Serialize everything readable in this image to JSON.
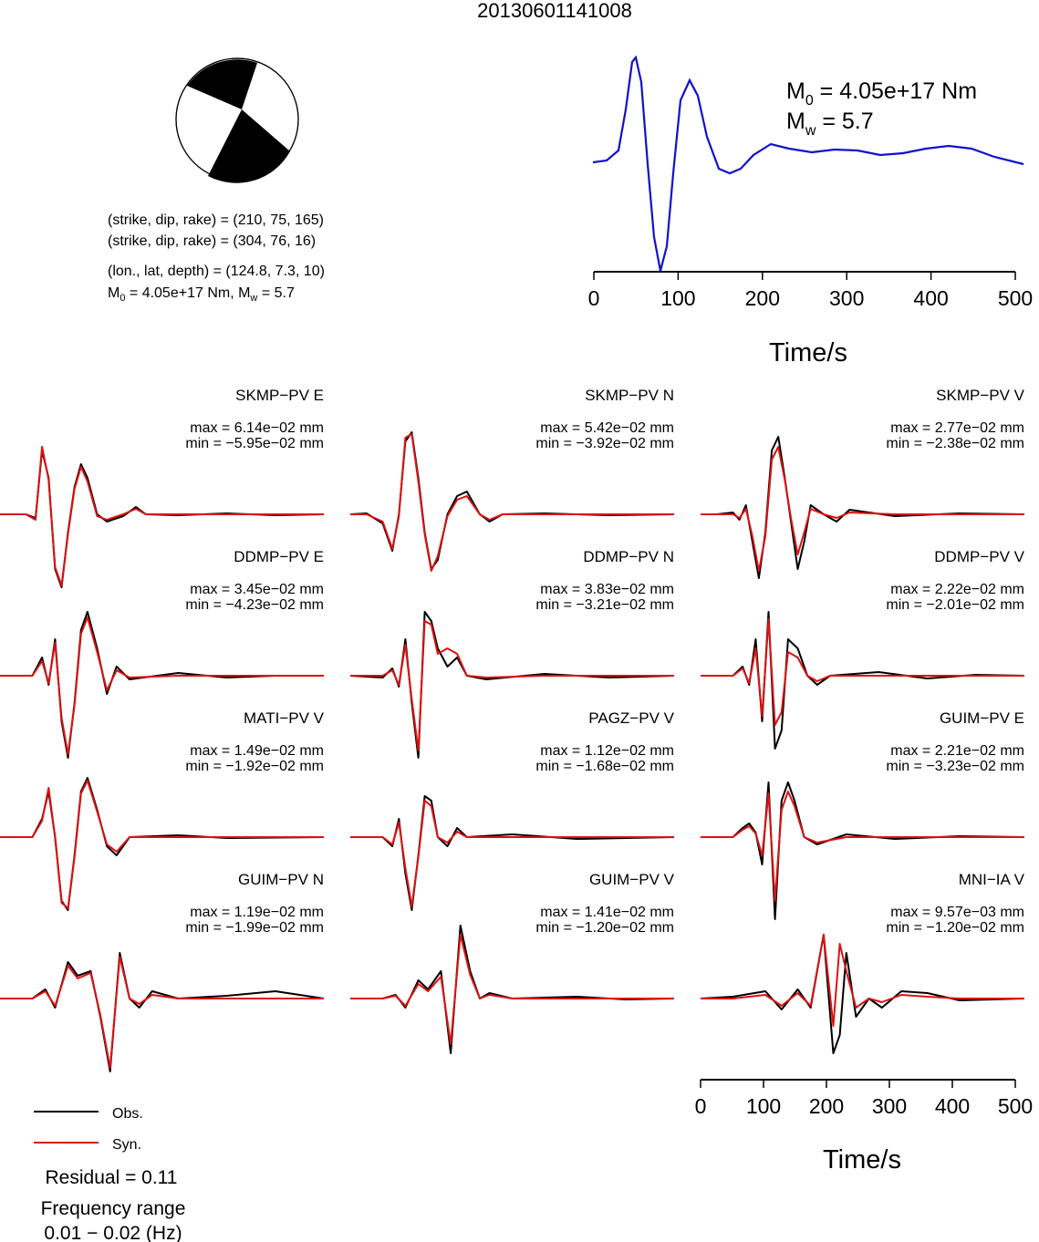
{
  "title": "20130601141008",
  "focal": {
    "line1": "(strike, dip, rake) = (210, 75, 165)",
    "line2": "(strike, dip, rake) = (304, 76, 16)",
    "line3": "(lon., lat, depth) = (124.8, 7.3, 10)",
    "m0_text": "M",
    "m0_rest": " = 4.05e+17 Nm, M",
    "mw_rest": " = 5.7",
    "sub0": "0",
    "subw": "w"
  },
  "stf": {
    "m0_label": "M",
    "m0_sub": "0",
    "m0_value": " = 4.05e+17 Nm",
    "mw_label": "M",
    "mw_sub": "w",
    "mw_value": " = 5.7",
    "xlabel": "Time/s",
    "xticks": [
      "0",
      "100",
      "200",
      "300",
      "400",
      "500"
    ],
    "color": "#1010cc"
  },
  "panels_axis": {
    "xlabel": "Time/s",
    "xticks": [
      "0",
      "100",
      "200",
      "300",
      "400",
      "500"
    ]
  },
  "legend": {
    "obs": "Obs.",
    "syn": "Syn.",
    "residual": "Residual = 0.11",
    "freq_title": "Frequency range",
    "freq_value": "0.01 − 0.02 (Hz)",
    "obs_color": "#000000",
    "syn_color": "#dd1111"
  },
  "chart_data": {
    "type": "line",
    "x_unit": "s",
    "xlim": [
      0,
      500
    ],
    "stations": [
      {
        "name": "SKMP−PV E",
        "max": "max = 6.14e−02 mm",
        "min": "min = −5.95e−02 mm"
      },
      {
        "name": "SKMP−PV N",
        "max": "max = 5.42e−02 mm",
        "min": "min = −3.92e−02 mm"
      },
      {
        "name": "SKMP−PV V",
        "max": "max = 2.77e−02 mm",
        "min": "min = −2.38e−02 mm"
      },
      {
        "name": "DDMP−PV E",
        "max": "max = 3.45e−02 mm",
        "min": "min = −4.23e−02 mm"
      },
      {
        "name": "DDMP−PV N",
        "max": "max = 3.83e−02 mm",
        "min": "min = −3.21e−02 mm"
      },
      {
        "name": "DDMP−PV V",
        "max": "max = 2.22e−02 mm",
        "min": "min = −2.01e−02 mm"
      },
      {
        "name": "MATI−PV V",
        "max": "max = 1.49e−02 mm",
        "min": "min = −1.92e−02 mm"
      },
      {
        "name": "PAGZ−PV V",
        "max": "max = 1.12e−02 mm",
        "min": "min = −1.68e−02 mm"
      },
      {
        "name": "GUIM−PV E",
        "max": "max = 2.21e−02 mm",
        "min": "min = −3.23e−02 mm"
      },
      {
        "name": "GUIM−PV N",
        "max": "max = 1.19e−02 mm",
        "min": "min = −1.99e−02 mm"
      },
      {
        "name": "GUIM−PV V",
        "max": "max = 1.41e−02 mm",
        "min": "min = −1.20e−02 mm"
      },
      {
        "name": "MNI−IA V",
        "max": "max = 9.57e−03 mm",
        "min": "min = −1.20e−02 mm"
      }
    ]
  }
}
